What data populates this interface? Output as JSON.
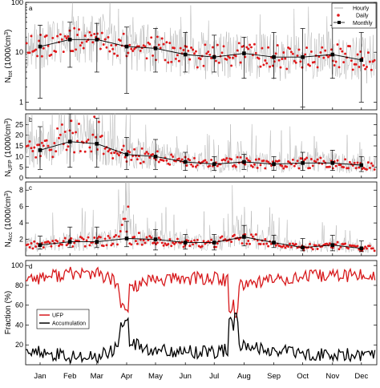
{
  "months": [
    "Jan",
    "Feb",
    "Mar",
    "Apr",
    "May",
    "Jun",
    "Jul",
    "Aug",
    "Sep",
    "Oct",
    "Nov",
    "Dec"
  ],
  "colors": {
    "hourly": "#b4b4b4",
    "daily": "#e0191b",
    "monthly": "#000000",
    "ufp": "#d7191c",
    "accumulation": "#000000"
  },
  "panels": {
    "a": {
      "letter": "a",
      "ylabel_main": "N",
      "ylabel_sub": "tot",
      "ylabel_unit": " (1000/cm",
      "ylabel_sup": "3",
      "ylabel_close": ")",
      "ticks": [
        "1",
        "10",
        "100"
      ]
    },
    "b": {
      "letter": "b",
      "ylabel_main": "N",
      "ylabel_sub": "UFP",
      "ylabel_unit": " (1000/cm",
      "ylabel_sup": "3",
      "ylabel_close": ")",
      "ticks": [
        "0",
        "5",
        "10",
        "15",
        "20",
        "25"
      ]
    },
    "c": {
      "letter": "c",
      "ylabel_main": "N",
      "ylabel_sub": "Acc",
      "ylabel_unit": " (1000/cm",
      "ylabel_sup": "3",
      "ylabel_close": ")",
      "ticks": [
        "2",
        "4",
        "6",
        "8"
      ]
    },
    "d": {
      "letter": "d",
      "ylabel": "Fraction (%)",
      "ticks": [
        "20",
        "40",
        "60",
        "80",
        "100"
      ]
    }
  },
  "legend_top": {
    "hourly": "Hourly",
    "daily": "Daily",
    "monthly": "Monthly"
  },
  "legend_bottom": {
    "ufp": "UFP",
    "accumulation": "Accumulation"
  },
  "chart_data": [
    {
      "type": "line",
      "panel": "a",
      "ylabel": "N_tot (1000/cm³)",
      "yscale": "log",
      "ylim": [
        0.7,
        100
      ],
      "xlim": [
        0,
        365
      ],
      "categories": [
        "Jan",
        "Feb",
        "Mar",
        "Apr",
        "May",
        "Jun",
        "Jul",
        "Aug",
        "Sep",
        "Oct",
        "Nov",
        "Dec"
      ],
      "series": [
        {
          "name": "Monthly",
          "values": [
            13,
            18,
            18,
            13,
            12,
            9,
            8,
            9.5,
            8,
            8,
            9,
            7
          ],
          "err_low": [
            1.2,
            5,
            4,
            1.5,
            4,
            4,
            4,
            3,
            3,
            0.8,
            3,
            1
          ],
          "err_high": [
            35,
            40,
            38,
            32,
            30,
            25,
            22,
            20,
            25,
            30,
            35,
            25
          ]
        }
      ]
    },
    {
      "type": "line",
      "panel": "b",
      "ylabel": "N_UFP (1000/cm³)",
      "ylim": [
        0,
        30
      ],
      "categories": [
        "Jan",
        "Feb",
        "Mar",
        "Apr",
        "May",
        "Jun",
        "Jul",
        "Aug",
        "Sep",
        "Oct",
        "Nov",
        "Dec"
      ],
      "series": [
        {
          "name": "Monthly",
          "values": [
            13,
            17,
            16,
            11,
            10,
            7.5,
            6.5,
            7.5,
            6.5,
            7,
            7,
            6
          ],
          "err_low": [
            4,
            5,
            5,
            4,
            4,
            3.5,
            3.5,
            4,
            3.5,
            3.5,
            3.5,
            3
          ],
          "err_high": [
            24,
            30,
            28,
            19,
            18,
            12,
            10,
            11,
            10,
            12,
            13,
            10
          ]
        }
      ]
    },
    {
      "type": "line",
      "panel": "c",
      "ylabel": "N_Acc (1000/cm³)",
      "ylim": [
        0,
        9
      ],
      "categories": [
        "Jan",
        "Feb",
        "Mar",
        "Apr",
        "May",
        "Jun",
        "Jul",
        "Aug",
        "Sep",
        "Oct",
        "Nov",
        "Dec"
      ],
      "series": [
        {
          "name": "Monthly",
          "values": [
            1.3,
            1.7,
            1.7,
            2.1,
            2.0,
            1.6,
            1.6,
            2.3,
            1.6,
            1.0,
            1.3,
            0.9
          ],
          "err_low": [
            0.8,
            1.0,
            1.0,
            1.1,
            0.7,
            0.8,
            0.7,
            1.2,
            1.0,
            0.6,
            0.6,
            0.5
          ],
          "err_high": [
            2.4,
            3.5,
            3.5,
            4.2,
            3.2,
            2.6,
            2.6,
            3.7,
            2.5,
            2.1,
            2.5,
            1.8
          ]
        }
      ]
    },
    {
      "type": "line",
      "panel": "d",
      "ylabel": "Fraction (%)",
      "ylim": [
        0,
        105
      ],
      "categories": [
        "Jan",
        "Feb",
        "Mar",
        "Apr",
        "May",
        "Jun",
        "Jul",
        "Aug",
        "Sep",
        "Oct",
        "Nov",
        "Dec"
      ],
      "series": [
        {
          "name": "UFP",
          "values": [
            88,
            92,
            92,
            78,
            85,
            87,
            87,
            82,
            86,
            88,
            90,
            90
          ]
        },
        {
          "name": "Accumulation",
          "values": [
            12,
            8,
            8,
            22,
            15,
            13,
            13,
            18,
            14,
            12,
            10,
            10
          ]
        }
      ]
    }
  ]
}
